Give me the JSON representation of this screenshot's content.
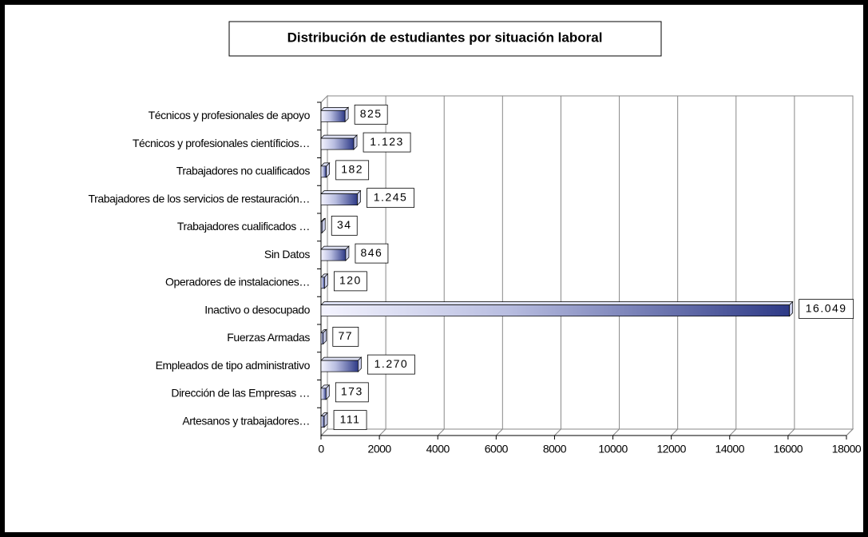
{
  "chart_data": {
    "type": "bar",
    "orientation": "horizontal",
    "title": "Distribución de estudiantes por situación laboral",
    "categories": [
      "Técnicos y profesionales de apoyo",
      "Técnicos y profesionales científicios…",
      "Trabajadores no cualificados",
      "Trabajadores de los servicios de restauración…",
      "Trabajadores cualificados …",
      "Sin Datos",
      "Operadores de instalaciones…",
      "Inactivo o desocupado",
      "Fuerzas Armadas",
      "Empleados de tipo administrativo",
      "Dirección de las Empresas …",
      "Artesanos y trabajadores…"
    ],
    "values": [
      825,
      1123,
      182,
      1245,
      34,
      846,
      120,
      16049,
      77,
      1270,
      173,
      111
    ],
    "value_labels": [
      "825",
      "1.123",
      "182",
      "1.245",
      "34",
      "846",
      "120",
      "16.049",
      "77",
      "1.270",
      "173",
      "111"
    ],
    "color": "#2e3a87",
    "xlim": [
      0,
      18000
    ],
    "xticks": [
      0,
      2000,
      4000,
      6000,
      8000,
      10000,
      12000,
      14000,
      16000,
      18000
    ],
    "grid": true
  }
}
